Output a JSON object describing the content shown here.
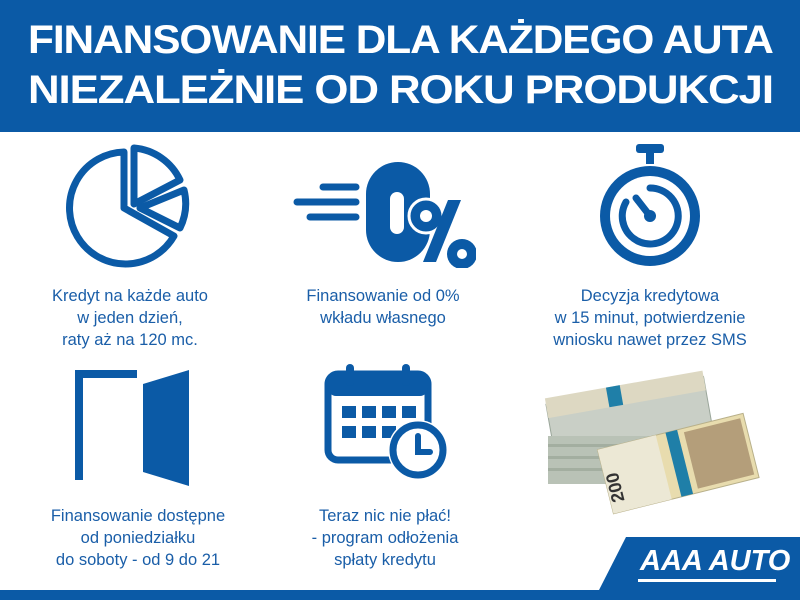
{
  "header": {
    "line1": "FINANSOWANIE DLA KAŻDEGO AUTA",
    "line2": "NIEZALEŻNIE OD ROKU PRODUKCJI"
  },
  "features": [
    {
      "icon": "pie-chart-icon",
      "lines": [
        "Kredyt na każde auto",
        "w jeden dzień,",
        "raty aż na 120 mc."
      ]
    },
    {
      "icon": "zero-percent-icon",
      "lines": [
        "Finansowanie od 0%",
        "wkładu własnego"
      ]
    },
    {
      "icon": "stopwatch-icon",
      "lines": [
        "Decyzja kredytowa",
        "w 15 minut, potwierdzenie",
        "wniosku nawet przez SMS"
      ]
    },
    {
      "icon": "door-icon",
      "lines": [
        "Finansowanie dostępne",
        "od poniedziałku",
        "do soboty - od 9 do 21"
      ]
    },
    {
      "icon": "calendar-clock-icon",
      "lines": [
        "Teraz nic nie płać!",
        "- program odłożenia",
        "spłaty kredytu"
      ]
    }
  ],
  "banknote": {
    "denomination": "200"
  },
  "logo": {
    "text": "AAA AUTO"
  },
  "colors": {
    "brand_blue": "#0b5aa6",
    "text_blue": "#1a5ea8",
    "white": "#ffffff"
  }
}
